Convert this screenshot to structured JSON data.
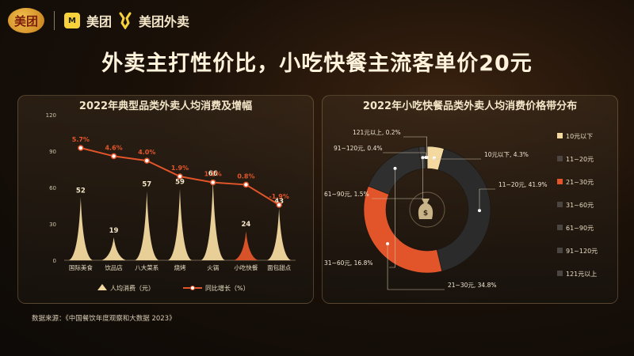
{
  "brand": {
    "logo_text": "美团",
    "meituan": "美团",
    "waimai": "美团外卖"
  },
  "headline": "外卖主打性价比，小吃快餐主流客单价20元",
  "left_title": "2022年典型品类外卖人均消费及增幅",
  "right_title": "2022年小吃快餐品类外卖人均消费价格带分布",
  "source": "数据来源：《中国餐饮年度观察和大数据 2023》",
  "colors": {
    "bar_gold": "#f3d9a0",
    "bar_orange": "#e2552a",
    "line": "#e2552a"
  },
  "chart_data": [
    {
      "type": "bar",
      "title": "2022年典型品类外卖人均消费及增幅",
      "categories": [
        "国际美食",
        "饮品店",
        "八大菜系",
        "烧烤",
        "火锅",
        "小吃快餐",
        "面包甜点"
      ],
      "series": [
        {
          "name": "人均消费（元）",
          "values": [
            52,
            19,
            57,
            59,
            66,
            24,
            43
          ],
          "value_labels": [
            "52",
            "19",
            "57",
            "59",
            "66",
            "24",
            "43"
          ]
        },
        {
          "name": "同比增长（%）",
          "type": "line",
          "values": [
            5.7,
            4.6,
            4.0,
            1.9,
            1.1,
            0.8,
            -1.9
          ],
          "value_labels": [
            "5.7%",
            "4.6%",
            "4.0%",
            "1.9%",
            "1.1%",
            "0.8%",
            "-1.9%"
          ]
        }
      ],
      "highlight_index": 5,
      "yticks": [
        "0",
        "30",
        "60",
        "90",
        "120"
      ],
      "ylim": [
        0,
        120
      ],
      "legend_placement": "bottom"
    },
    {
      "type": "pie",
      "subtype": "donut",
      "title": "2022年小吃快餐品类外卖人均消费价格带分布",
      "categories": [
        "10元以下",
        "11~20元",
        "21~30元",
        "31~60元",
        "61~90元",
        "91~120元",
        "121元以上"
      ],
      "values": [
        4.3,
        41.9,
        34.8,
        16.8,
        1.5,
        0.4,
        0.2
      ],
      "slice_labels": [
        "10元以下, 4.3%",
        "11~20元, 41.9%",
        "21~30元, 34.8%",
        "31~60元, 16.8%",
        "61~90元, 1.5%",
        "91~120元, 0.4%",
        "121元以上, 0.2%"
      ],
      "colors": [
        "#f3d9a0",
        "#2b2b2b",
        "#e2552a",
        "#2f2f2f",
        "#3a3a3a",
        "#343434",
        "#3d3d3d"
      ],
      "legend_placement": "right"
    }
  ]
}
